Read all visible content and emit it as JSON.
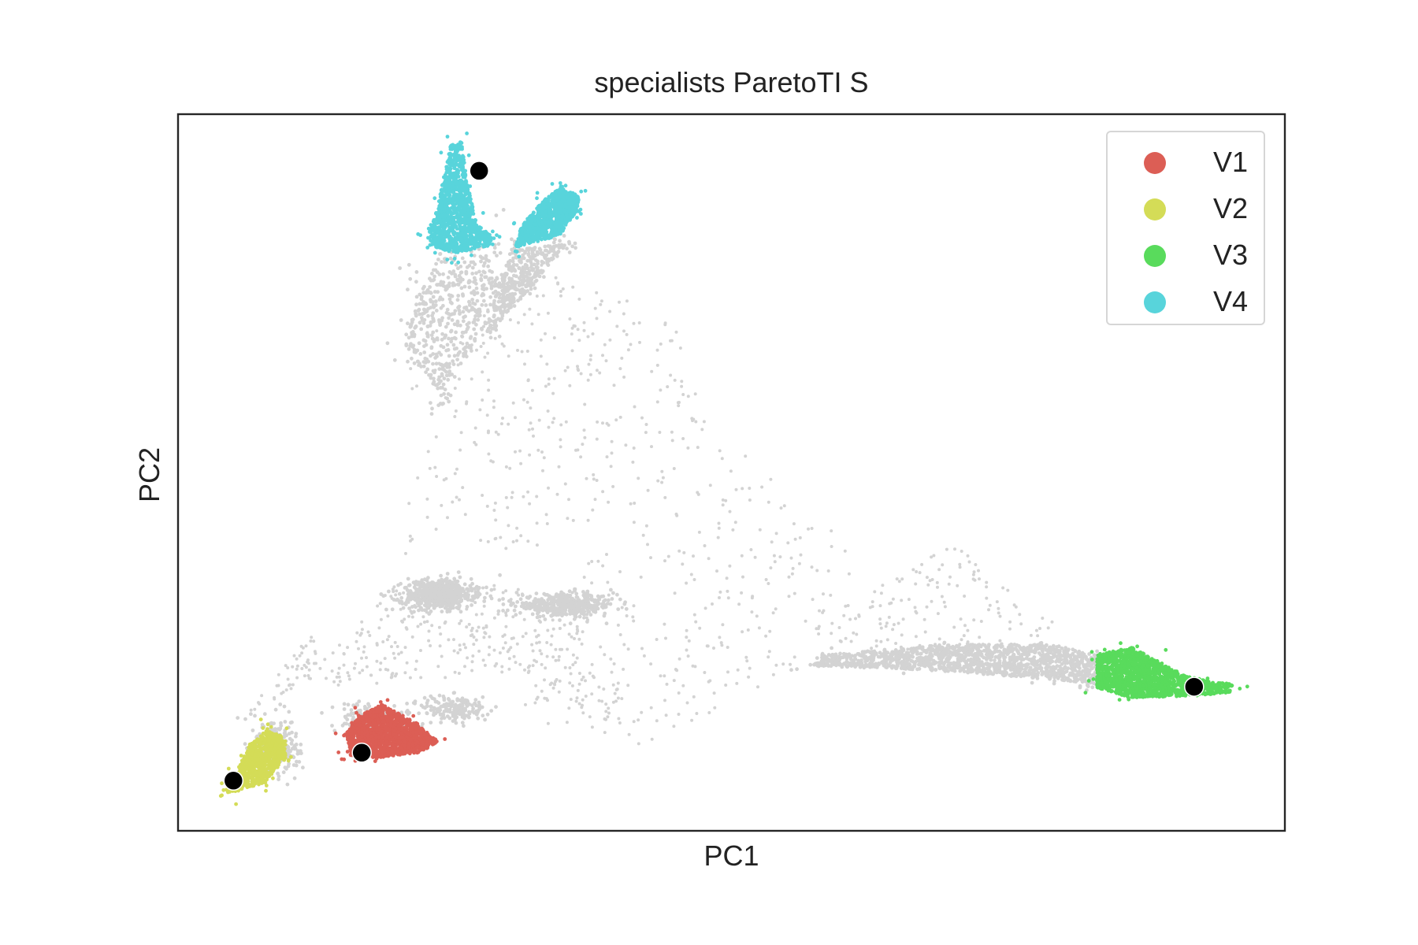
{
  "chart_data": {
    "type": "scatter",
    "title": "specialists ParetoTI S",
    "xlabel": "PC1",
    "ylabel": "PC2",
    "xlim": [
      0,
      100
    ],
    "ylim": [
      0,
      100
    ],
    "grid": false,
    "legend_position": "top-right",
    "background_color": "#d3d3d3",
    "series": [
      {
        "name": "V1",
        "color": "#dc5e55"
      },
      {
        "name": "V2",
        "color": "#d4dc57"
      },
      {
        "name": "V3",
        "color": "#59db5c"
      },
      {
        "name": "V4",
        "color": "#58d4db"
      }
    ],
    "clusters": [
      {
        "series": null,
        "shape": "poly",
        "poly": [
          [
            22,
            76
          ],
          [
            20.5,
            68
          ],
          [
            24,
            60
          ],
          [
            28,
            71
          ],
          [
            29,
            82
          ],
          [
            24,
            80
          ]
        ],
        "n": 420,
        "edge": 70
      },
      {
        "series": null,
        "shape": "poly",
        "poly": [
          [
            28.5,
            70
          ],
          [
            32,
            76
          ],
          [
            35,
            82
          ],
          [
            30.5,
            81
          ],
          [
            28.5,
            76
          ]
        ],
        "n": 360,
        "edge": 70
      },
      {
        "series": null,
        "shape": "ellipse",
        "cx": 23.5,
        "cy": 33,
        "rx": 3.2,
        "ry": 2.0,
        "angle": 5,
        "n": 650
      },
      {
        "series": null,
        "shape": "ellipse",
        "cx": 35,
        "cy": 31.5,
        "rx": 4.5,
        "ry": 1.5,
        "angle": 0,
        "n": 460
      },
      {
        "series": null,
        "shape": "poly",
        "poly": [
          [
            57,
            23
          ],
          [
            67,
            22.5
          ],
          [
            80,
            21
          ],
          [
            83,
            20
          ],
          [
            83,
            24.5
          ],
          [
            79,
            26
          ],
          [
            69,
            26
          ],
          [
            58,
            24.5
          ]
        ],
        "n": 1400,
        "edge": 40
      },
      {
        "series": null,
        "shape": "ellipse",
        "cx": 18,
        "cy": 15,
        "rx": 3.5,
        "ry": 2.2,
        "angle": -25,
        "n": 260
      },
      {
        "series": null,
        "shape": "ellipse",
        "cx": 9,
        "cy": 12,
        "rx": 1.8,
        "ry": 4.0,
        "angle": 10,
        "n": 220
      },
      {
        "series": null,
        "shape": "ellipse",
        "cx": 25,
        "cy": 17,
        "rx": 3.0,
        "ry": 2.0,
        "angle": 0,
        "n": 180
      },
      {
        "series": "V1",
        "shape": "poly",
        "poly": [
          [
            15.2,
            13.7
          ],
          [
            15.6,
            10.5
          ],
          [
            18,
            10.2
          ],
          [
            22,
            11
          ],
          [
            23.5,
            12.5
          ],
          [
            21,
            15.5
          ],
          [
            18.5,
            17.6
          ],
          [
            16.5,
            16.2
          ]
        ],
        "n": 1500,
        "edge": 25
      },
      {
        "series": "V2",
        "shape": "poly",
        "poly": [
          [
            4.3,
            5.3
          ],
          [
            7.7,
            6.6
          ],
          [
            9.8,
            10.2
          ],
          [
            9.4,
            13.2
          ],
          [
            8,
            14
          ],
          [
            6.5,
            12
          ],
          [
            5.3,
            8.3
          ],
          [
            4.6,
            6.3
          ]
        ],
        "n": 800,
        "edge": 35
      },
      {
        "series": "V3",
        "shape": "poly",
        "poly": [
          [
            83,
            20
          ],
          [
            86,
            18.6
          ],
          [
            91.5,
            18.8
          ],
          [
            95,
            19.3
          ],
          [
            95.3,
            20.4
          ],
          [
            91,
            21.6
          ],
          [
            86.2,
            25.6
          ],
          [
            83,
            24.6
          ]
        ],
        "n": 1600,
        "edge": 30
      },
      {
        "series": "V4",
        "shape": "poly",
        "poly": [
          [
            22.6,
            81.8
          ],
          [
            25,
            80.6
          ],
          [
            28,
            81.6
          ],
          [
            28.6,
            82.7
          ],
          [
            27,
            84.6
          ],
          [
            26.2,
            90
          ],
          [
            25.6,
            96.2
          ],
          [
            24.6,
            95.6
          ],
          [
            23.4,
            86.7
          ],
          [
            22.6,
            84.1
          ]
        ],
        "n": 1100,
        "edge": 30
      },
      {
        "series": "V4",
        "shape": "poly",
        "poly": [
          [
            30.5,
            81.4
          ],
          [
            34.5,
            83.1
          ],
          [
            36,
            86.5
          ],
          [
            36.3,
            88.7
          ],
          [
            34.5,
            89.7
          ],
          [
            33,
            87.9
          ],
          [
            31,
            84.4
          ]
        ],
        "n": 900,
        "edge": 30
      }
    ],
    "scatter_regions": [
      {
        "poly": [
          [
            21,
            70
          ],
          [
            33,
            80
          ],
          [
            45,
            71
          ],
          [
            48,
            58
          ],
          [
            35,
            40
          ],
          [
            20,
            38
          ]
        ],
        "n": 320
      },
      {
        "poly": [
          [
            13,
            20
          ],
          [
            30,
            22
          ],
          [
            42,
            13
          ],
          [
            36,
            34
          ],
          [
            20,
            35
          ],
          [
            12,
            22
          ]
        ],
        "n": 340
      },
      {
        "poly": [
          [
            33,
            30
          ],
          [
            47,
            58
          ],
          [
            62,
            39
          ],
          [
            56,
            22
          ],
          [
            42,
            12
          ],
          [
            30,
            16
          ]
        ],
        "n": 260
      },
      {
        "poly": [
          [
            56,
            28
          ],
          [
            70,
            40
          ],
          [
            80,
            28
          ],
          [
            68,
            22
          ]
        ],
        "n": 160
      },
      {
        "poly": [
          [
            5,
            15
          ],
          [
            13,
            22
          ],
          [
            12,
            28
          ],
          [
            8,
            20
          ]
        ],
        "n": 50
      }
    ],
    "archetypes": [
      {
        "x": 16.6,
        "y": 10.9
      },
      {
        "x": 5,
        "y": 7
      },
      {
        "x": 91.8,
        "y": 20.1
      },
      {
        "x": 27.2,
        "y": 92.1
      }
    ]
  }
}
